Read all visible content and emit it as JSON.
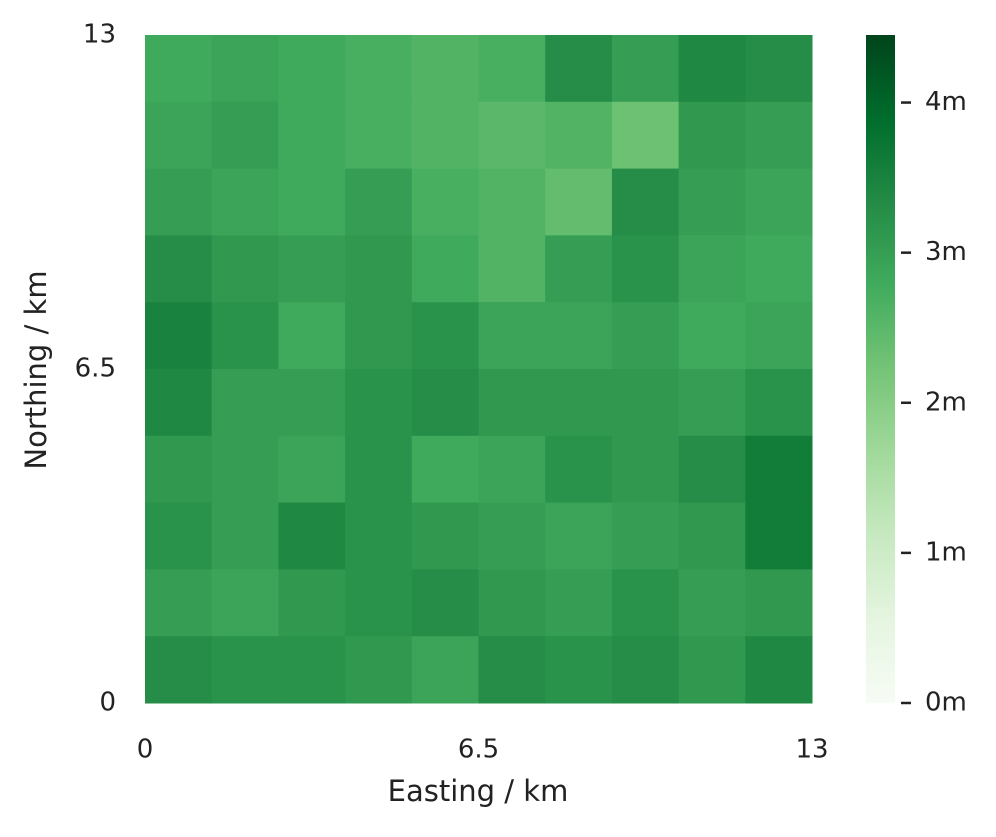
{
  "chart_data": {
    "type": "heatmap",
    "xlabel": "Easting / km",
    "ylabel": "Northing / km",
    "xlim": [
      0,
      13
    ],
    "xticks": [
      0,
      6.5,
      13
    ],
    "ylim": [
      0,
      13
    ],
    "yticks": [
      0,
      6.5,
      13
    ],
    "z": [
      [
        2.8,
        2.9,
        2.8,
        2.7,
        2.6,
        2.7,
        3.3,
        3.0,
        3.4,
        3.3
      ],
      [
        2.9,
        3.0,
        2.8,
        2.7,
        2.6,
        2.5,
        2.6,
        2.3,
        3.1,
        3.0
      ],
      [
        3.0,
        2.9,
        2.8,
        3.0,
        2.7,
        2.6,
        2.4,
        3.3,
        3.0,
        2.9
      ],
      [
        3.3,
        3.1,
        3.0,
        3.1,
        2.8,
        2.6,
        3.0,
        3.2,
        2.9,
        2.8
      ],
      [
        3.5,
        3.2,
        2.8,
        3.1,
        3.2,
        2.9,
        2.9,
        3.0,
        2.8,
        2.9
      ],
      [
        3.4,
        3.0,
        3.0,
        3.2,
        3.3,
        3.1,
        3.1,
        3.1,
        3.0,
        3.2
      ],
      [
        3.1,
        3.0,
        2.9,
        3.2,
        2.8,
        2.9,
        3.2,
        3.1,
        3.3,
        3.6
      ],
      [
        3.2,
        3.0,
        3.4,
        3.2,
        3.1,
        3.0,
        2.9,
        3.0,
        3.1,
        3.6
      ],
      [
        3.0,
        2.9,
        3.1,
        3.2,
        3.3,
        3.1,
        3.0,
        3.2,
        3.0,
        3.1
      ],
      [
        3.3,
        3.2,
        3.2,
        3.1,
        2.9,
        3.3,
        3.2,
        3.3,
        3.1,
        3.4
      ]
    ],
    "clim": [
      0,
      4.45
    ],
    "cticks": [
      {
        "value": 0,
        "label": "0m"
      },
      {
        "value": 1,
        "label": "1m"
      },
      {
        "value": 2,
        "label": "2m"
      },
      {
        "value": 3,
        "label": "3m"
      },
      {
        "value": 4,
        "label": "4m"
      }
    ],
    "colors": [
      "#f7fcf5",
      "#e5f5e0",
      "#c7e9c0",
      "#a1d99b",
      "#74c476",
      "#41ab5d",
      "#238b45",
      "#006d2c",
      "#00441b"
    ]
  }
}
